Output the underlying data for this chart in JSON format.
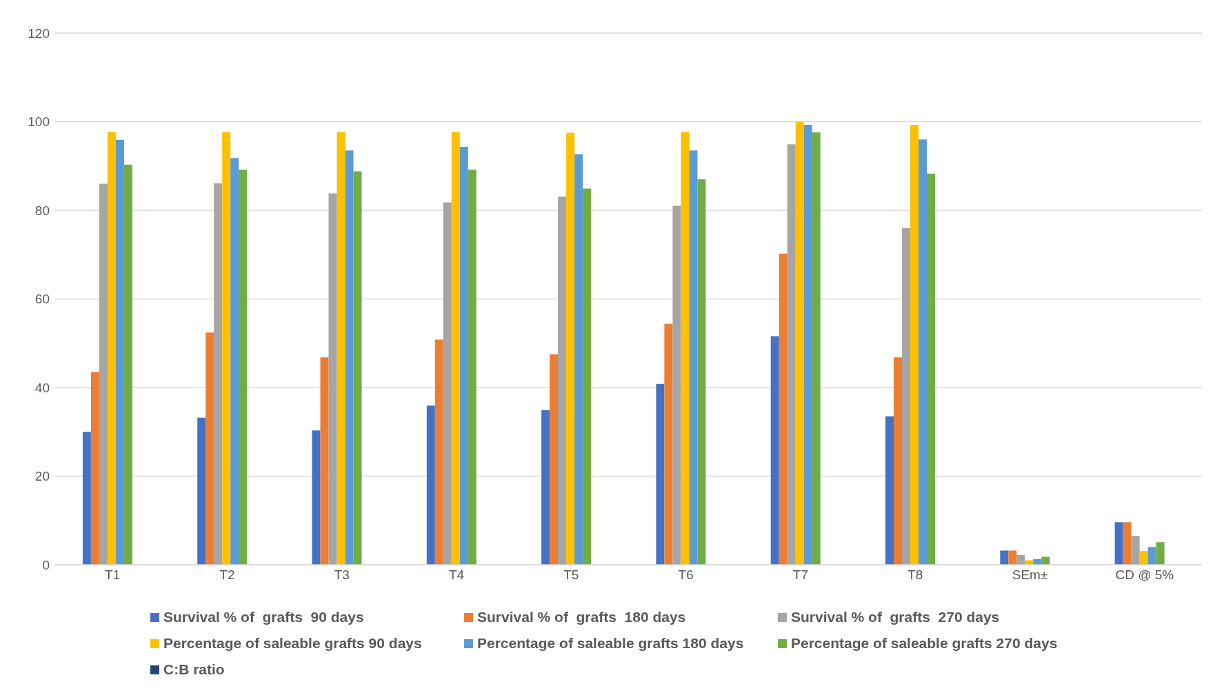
{
  "chart_data": {
    "type": "bar",
    "categories": [
      "T1",
      "T2",
      "T3",
      "T4",
      "T5",
      "T6",
      "T7",
      "T8",
      "SEm±",
      "CD @ 5%"
    ],
    "series": [
      {
        "name": "Survival % of  grafts  90 days",
        "color": "#4472c4",
        "values": [
          30,
          33.2,
          30.3,
          35.9,
          34.9,
          40.8,
          51.6,
          33.5,
          3.2,
          9.6
        ]
      },
      {
        "name": "Survival % of  grafts  180 days",
        "color": "#ed7d31",
        "values": [
          43.5,
          52.4,
          46.8,
          50.8,
          47.5,
          54.4,
          70.2,
          46.8,
          3.2,
          9.6
        ]
      },
      {
        "name": "Survival % of  grafts  270 days",
        "color": "#a5a5a5",
        "values": [
          86,
          86.1,
          83.8,
          81.8,
          83.1,
          81,
          94.9,
          76,
          2.2,
          6.5
        ]
      },
      {
        "name": "Percentage of saleable grafts 90 days",
        "color": "#ffc000",
        "values": [
          97.7,
          97.7,
          97.7,
          97.7,
          97.5,
          97.7,
          100,
          99.3,
          1,
          3.1
        ]
      },
      {
        "name": "Percentage of saleable grafts 180 days",
        "color": "#5b9bd5",
        "values": [
          95.9,
          91.8,
          93.5,
          94.3,
          92.7,
          93.5,
          99.3,
          96,
          1.3,
          4
        ]
      },
      {
        "name": "Percentage of saleable grafts 270 days",
        "color": "#70ad47",
        "values": [
          90.3,
          89.2,
          88.8,
          89.2,
          84.9,
          87,
          97.6,
          88.3,
          1.8,
          5.1
        ]
      },
      {
        "name": "C:B ratio",
        "color": "#264478",
        "values": [
          null,
          null,
          null,
          null,
          null,
          null,
          null,
          null,
          null,
          null
        ]
      }
    ],
    "ylim": [
      0,
      120
    ],
    "yticks": [
      0,
      20,
      40,
      60,
      80,
      100,
      120
    ],
    "grid": "y",
    "legend": "bottom"
  }
}
